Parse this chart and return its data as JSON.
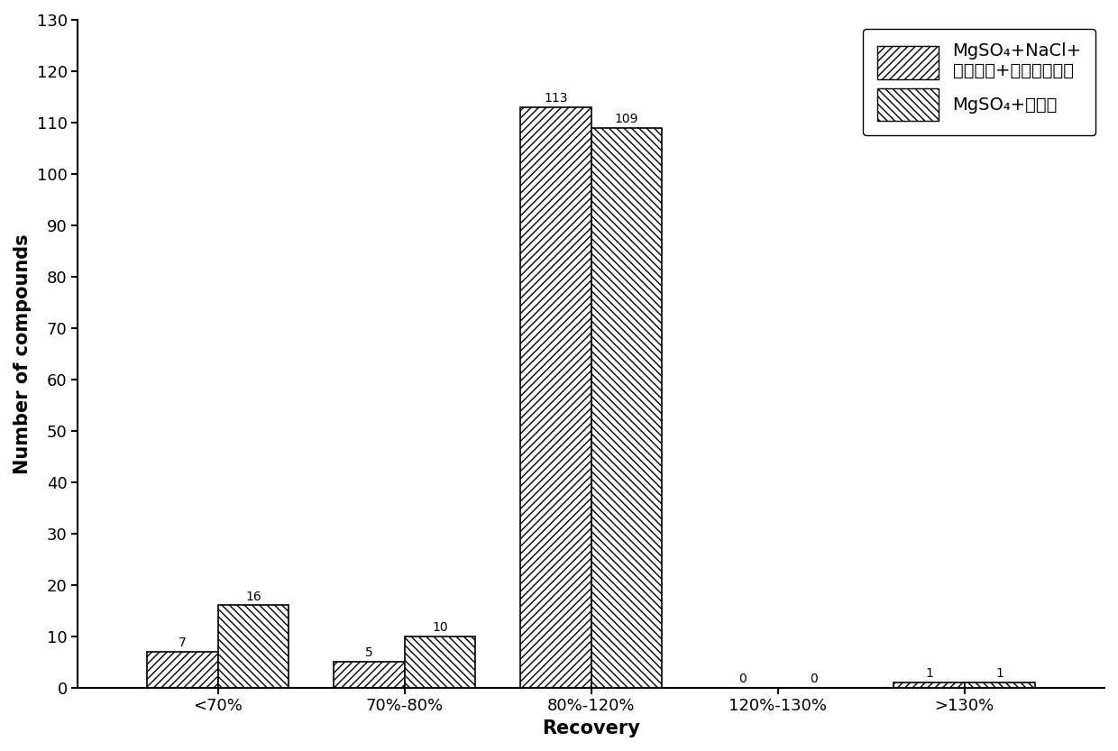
{
  "categories": [
    "<70%",
    "70%-80%",
    "80%-120%",
    "120%-130%",
    ">130%"
  ],
  "series1_values": [
    7,
    5,
    113,
    0,
    1
  ],
  "series2_values": [
    16,
    10,
    109,
    0,
    1
  ],
  "series1_label_line1": "MgSO₄+NaCl+",
  "series1_label_line2": "柠橬酸钉+柠橬酸二钉盐",
  "series2_label": "MgSO₄+乙酸钉",
  "xlabel": "Recovery",
  "ylabel": "Number of compounds",
  "ylim": [
    0,
    130
  ],
  "yticks": [
    0,
    10,
    20,
    30,
    40,
    50,
    60,
    70,
    80,
    90,
    100,
    110,
    120,
    130
  ],
  "bar_width": 0.38,
  "hatch1": "////",
  "hatch2": "\\\\\\\\",
  "facecolor": "white",
  "edgecolor": "black",
  "annotation_fontsize": 10,
  "axis_fontsize": 15,
  "tick_fontsize": 13,
  "legend_fontsize": 14
}
